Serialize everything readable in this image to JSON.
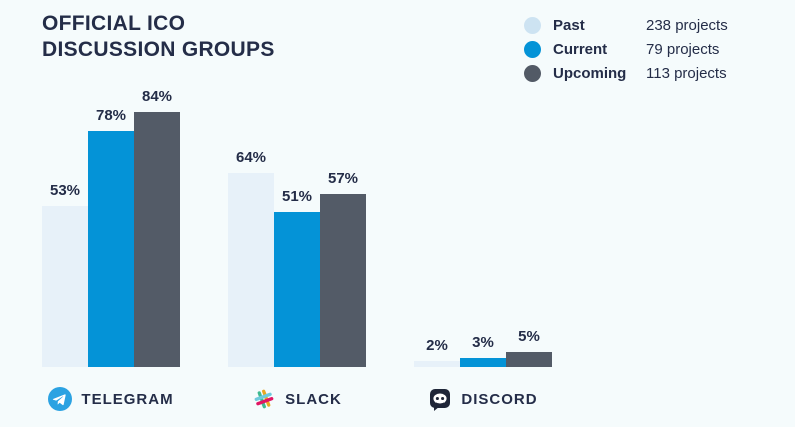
{
  "title": {
    "line1": "OFFICIAL ICO",
    "line2": "DISCUSSION GROUPS"
  },
  "legend": [
    {
      "label": "Past",
      "value": "238 projects",
      "color": "#cde3f2"
    },
    {
      "label": "Current",
      "value": "79 projects",
      "color": "#0493d7"
    },
    {
      "label": "Upcoming",
      "value": "113 projects",
      "color": "#525a66"
    }
  ],
  "chart_data": {
    "type": "bar",
    "title": "OFFICIAL ICO DISCUSSION GROUPS",
    "categories": [
      "TELEGRAM",
      "SLACK",
      "DISCORD"
    ],
    "series": [
      {
        "name": "Past",
        "color": "#e7f1f9",
        "values": [
          53,
          64,
          2
        ]
      },
      {
        "name": "Current",
        "color": "#0493d7",
        "values": [
          78,
          51,
          3
        ]
      },
      {
        "name": "Upcoming",
        "color": "#535b67",
        "values": [
          84,
          57,
          5
        ]
      }
    ],
    "value_suffix": "%",
    "ylim": [
      0,
      100
    ],
    "grid": false,
    "legend_position": "top-right",
    "category_icons": [
      "telegram-icon",
      "slack-icon",
      "discord-icon"
    ]
  },
  "colors": {
    "background": "#f5fbfc",
    "text": "#242d48"
  }
}
